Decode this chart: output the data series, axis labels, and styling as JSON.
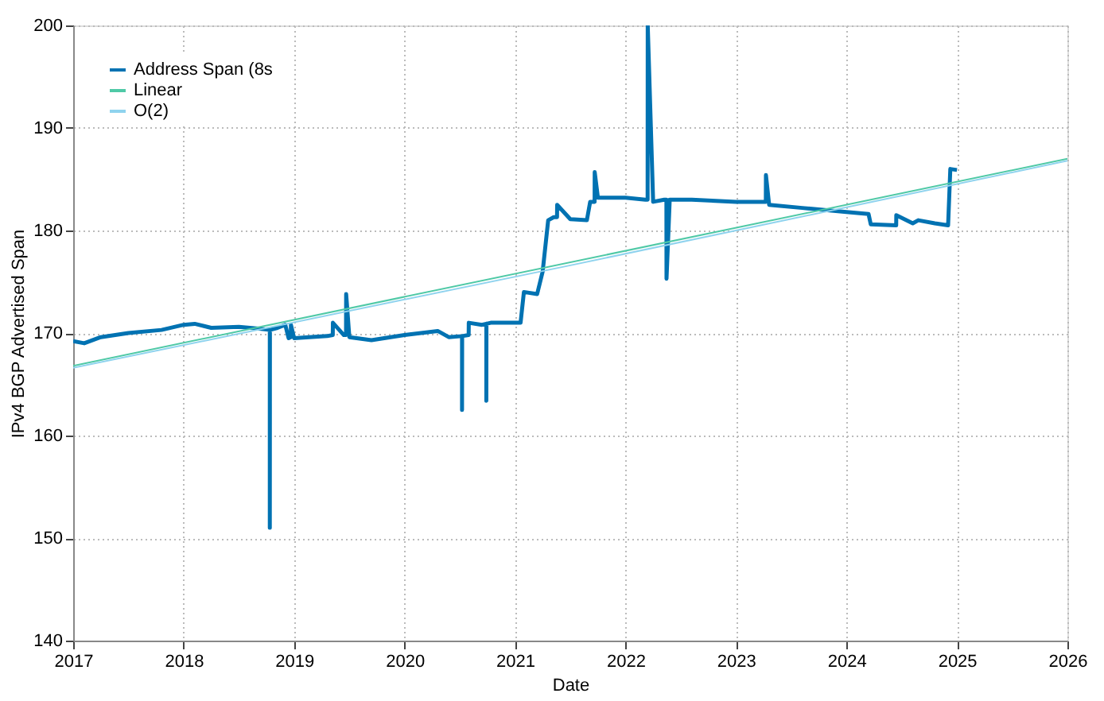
{
  "chart_data": {
    "type": "line",
    "xlabel": "Date",
    "ylabel": "IPv4 BGP Advertised Span",
    "xlim": [
      2017,
      2026
    ],
    "xticks": [
      2017,
      2018,
      2019,
      2020,
      2021,
      2022,
      2023,
      2024,
      2025,
      2026
    ],
    "ylim": [
      140,
      200
    ],
    "yticks": [
      140,
      150,
      160,
      170,
      180,
      190,
      200
    ],
    "grid": true,
    "legend": "top left",
    "marker": "none",
    "line_style": "solid",
    "series": [
      {
        "name": "Address Span (8s",
        "color": "#0072b2",
        "x": [
          2017.0,
          2017.1,
          2017.25,
          2017.5,
          2017.8,
          2018.0,
          2018.1,
          2018.25,
          2018.5,
          2018.7,
          2018.78,
          2018.78,
          2018.781,
          2018.85,
          2018.92,
          2018.95,
          2018.97,
          2018.971,
          2019.0,
          2019.3,
          2019.35,
          2019.351,
          2019.45,
          2019.47,
          2019.471,
          2019.5,
          2019.7,
          2020.0,
          2020.3,
          2020.4,
          2020.52,
          2020.52,
          2020.521,
          2020.58,
          2020.581,
          2020.7,
          2020.74,
          2020.74,
          2020.741,
          2020.78,
          2021.0,
          2021.05,
          2021.08,
          2021.2,
          2021.25,
          2021.3,
          2021.35,
          2021.38,
          2021.381,
          2021.5,
          2021.65,
          2021.68,
          2021.72,
          2021.721,
          2021.75,
          2022.0,
          2022.18,
          2022.2,
          2022.201,
          2022.25,
          2022.35,
          2022.37,
          2022.371,
          2022.4,
          2022.6,
          2023.0,
          2023.25,
          2023.27,
          2023.271,
          2023.3,
          2023.6,
          2024.0,
          2024.2,
          2024.22,
          2024.45,
          2024.45,
          2024.451,
          2024.6,
          2024.65,
          2024.8,
          2024.92,
          2024.94,
          2025.0
        ],
        "values": [
          169.2,
          169.0,
          169.6,
          170.0,
          170.3,
          170.8,
          170.9,
          170.5,
          170.6,
          170.4,
          170.3,
          151.0,
          170.3,
          170.5,
          170.8,
          169.5,
          169.6,
          170.8,
          169.5,
          169.7,
          169.8,
          171.0,
          169.8,
          169.8,
          173.8,
          169.6,
          169.3,
          169.8,
          170.2,
          169.6,
          169.7,
          162.5,
          169.7,
          169.8,
          171.0,
          170.8,
          170.9,
          163.4,
          170.9,
          171.0,
          171.0,
          171.0,
          174.0,
          173.8,
          176.0,
          181.0,
          181.3,
          181.3,
          182.5,
          181.1,
          181.0,
          182.8,
          182.8,
          185.7,
          183.2,
          183.2,
          183.0,
          183.0,
          200.0,
          182.8,
          183.0,
          183.0,
          175.3,
          183.0,
          183.0,
          182.8,
          182.8,
          182.8,
          185.4,
          182.5,
          182.2,
          181.8,
          181.6,
          180.6,
          180.5,
          180.5,
          181.5,
          180.7,
          181.0,
          180.7,
          180.5,
          186.0,
          185.9
        ]
      },
      {
        "name": "Linear",
        "color": "#4fc9a6",
        "x": [
          2017,
          2026
        ],
        "values": [
          166.8,
          187.0
        ]
      },
      {
        "name": "O(2)",
        "color": "#8fd3ee",
        "x": [
          2017,
          2021.5,
          2026
        ],
        "values": [
          166.6,
          176.6,
          186.8
        ]
      }
    ]
  }
}
